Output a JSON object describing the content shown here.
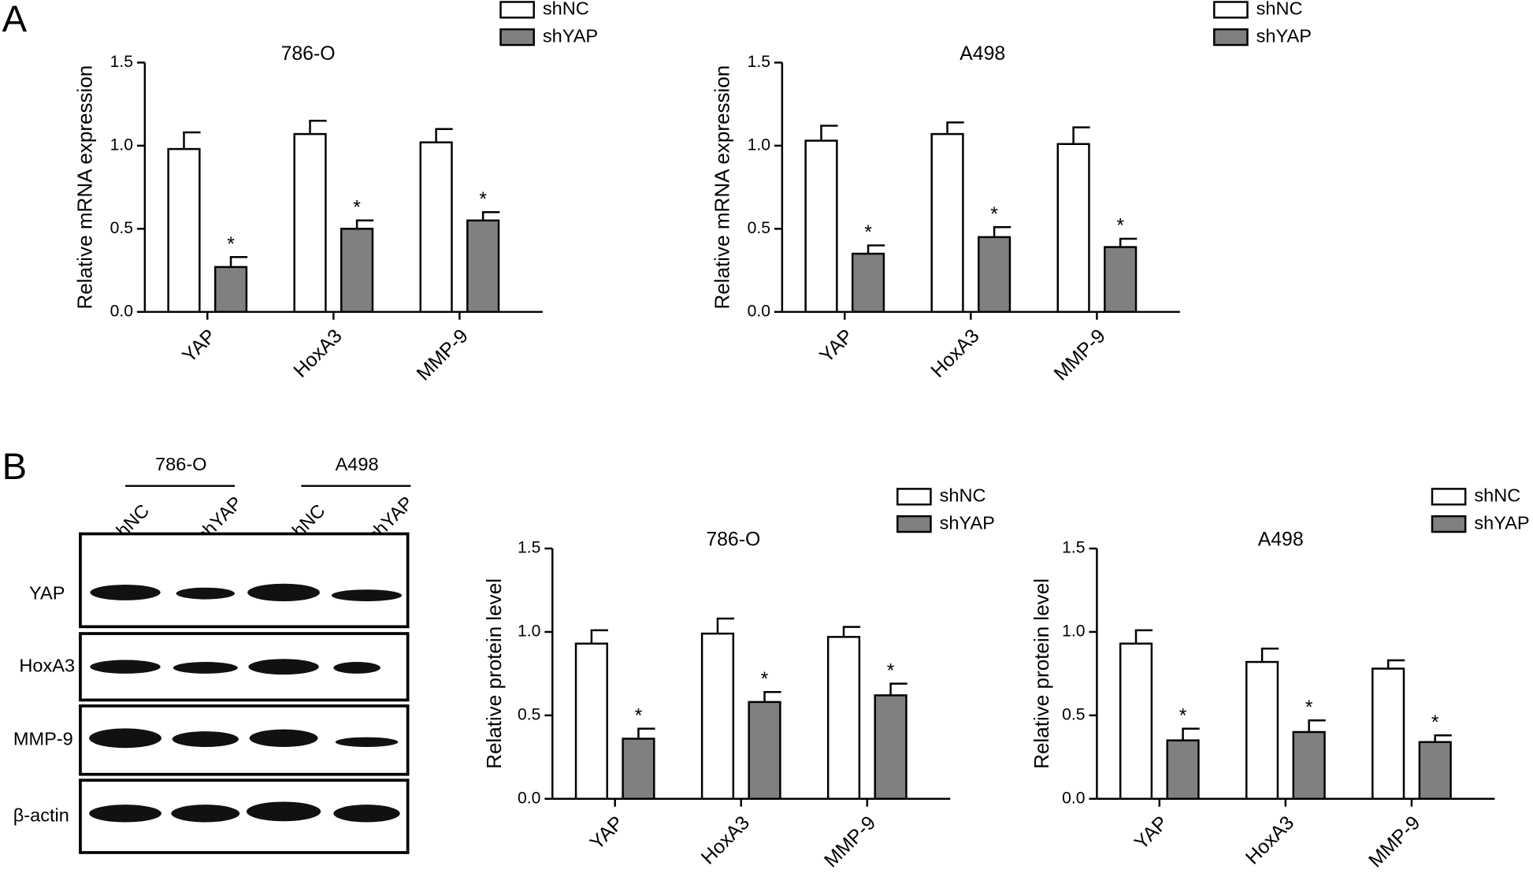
{
  "panels": [
    "A",
    "B"
  ],
  "blot": {
    "groups": [
      "786-O",
      "A498"
    ],
    "lanes": [
      "shNC",
      "shYAP",
      "shNC",
      "shYAP"
    ],
    "rows": [
      "YAP",
      "HoxA3",
      "MMP-9",
      "β-actin"
    ]
  },
  "chart_data": [
    {
      "type": "bar",
      "title": "786-O",
      "y_label": "Relative mRNA expression",
      "categories": [
        "YAP",
        "HoxA3",
        "MMP-9"
      ],
      "series": [
        {
          "name": "shNC",
          "color": "#ffffff",
          "values": [
            0.98,
            1.07,
            1.02
          ],
          "errors": [
            0.1,
            0.08,
            0.08
          ]
        },
        {
          "name": "shYAP",
          "color": "#808080",
          "values": [
            0.27,
            0.5,
            0.55
          ],
          "errors": [
            0.06,
            0.05,
            0.05
          ],
          "annotations": [
            "*",
            "*",
            "*"
          ]
        }
      ],
      "ylim": [
        0,
        1.5
      ],
      "yticks": [
        {
          "value": 0,
          "label": "0.0"
        },
        0.5,
        {
          "value": 1,
          "label": "1.0"
        },
        1.5
      ],
      "legend": "top-right"
    },
    {
      "type": "bar",
      "title": "A498",
      "y_label": "Relative mRNA expression",
      "categories": [
        "YAP",
        "HoxA3",
        "MMP-9"
      ],
      "series": [
        {
          "name": "shNC",
          "color": "#ffffff",
          "values": [
            1.03,
            1.07,
            1.01
          ],
          "errors": [
            0.09,
            0.07,
            0.1
          ]
        },
        {
          "name": "shYAP",
          "color": "#808080",
          "values": [
            0.35,
            0.45,
            0.39
          ],
          "errors": [
            0.05,
            0.06,
            0.05
          ],
          "annotations": [
            "*",
            "*",
            "*"
          ]
        }
      ],
      "ylim": [
        0,
        1.5
      ],
      "yticks": [
        {
          "value": 0,
          "label": "0.0"
        },
        0.5,
        {
          "value": 1,
          "label": "1.0"
        },
        1.5
      ],
      "legend": "top-right"
    },
    {
      "type": "bar",
      "title": "786-O",
      "y_label": "Relative protein level",
      "categories": [
        "YAP",
        "HoxA3",
        "MMP-9"
      ],
      "series": [
        {
          "name": "shNC",
          "color": "#ffffff",
          "values": [
            0.93,
            0.99,
            0.97
          ],
          "errors": [
            0.08,
            0.09,
            0.06
          ]
        },
        {
          "name": "shYAP",
          "color": "#808080",
          "values": [
            0.36,
            0.58,
            0.62
          ],
          "errors": [
            0.06,
            0.06,
            0.07
          ],
          "annotations": [
            "*",
            "*",
            "*"
          ]
        }
      ],
      "ylim": [
        0,
        1.5
      ],
      "yticks": [
        {
          "value": 0,
          "label": "0.0"
        },
        0.5,
        {
          "value": 1,
          "label": "1.0"
        },
        1.5
      ],
      "legend": "top-right"
    },
    {
      "type": "bar",
      "title": "A498",
      "y_label": "Relative protein level",
      "categories": [
        "YAP",
        "HoxA3",
        "MMP-9"
      ],
      "series": [
        {
          "name": "shNC",
          "color": "#ffffff",
          "values": [
            0.93,
            0.82,
            0.78
          ],
          "errors": [
            0.08,
            0.08,
            0.05
          ]
        },
        {
          "name": "shYAP",
          "color": "#808080",
          "values": [
            0.35,
            0.4,
            0.34
          ],
          "errors": [
            0.07,
            0.07,
            0.04
          ],
          "annotations": [
            "*",
            "*",
            "*"
          ]
        }
      ],
      "ylim": [
        0,
        1.5
      ],
      "yticks": [
        {
          "value": 0,
          "label": "0.0"
        },
        0.5,
        {
          "value": 1,
          "label": "1.0"
        },
        1.5
      ],
      "legend": "top-right"
    }
  ]
}
